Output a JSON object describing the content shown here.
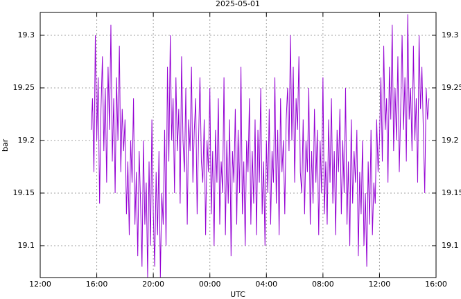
{
  "chart_data": {
    "type": "line",
    "title": "2025-05-01",
    "xlabel": "UTC",
    "ylabel": "bar",
    "xlim": [
      12,
      40
    ],
    "xticks": [
      {
        "value": 12,
        "label": "12:00"
      },
      {
        "value": 16,
        "label": "16:00"
      },
      {
        "value": 20,
        "label": "20:00"
      },
      {
        "value": 24,
        "label": "00:00"
      },
      {
        "value": 28,
        "label": "04:00"
      },
      {
        "value": 32,
        "label": "08:00"
      },
      {
        "value": 36,
        "label": "12:00"
      },
      {
        "value": 40,
        "label": "16:00"
      }
    ],
    "ylim": [
      19.0697,
      19.3217
    ],
    "yticks": [
      19.1,
      19.15,
      19.2,
      19.25,
      19.3
    ],
    "grid": true,
    "x": [
      15.6,
      15.7,
      15.8,
      15.9,
      16.0,
      16.1,
      16.2,
      16.3,
      16.4,
      16.5,
      16.6,
      16.7,
      16.8,
      16.9,
      17.0,
      17.1,
      17.2,
      17.3,
      17.4,
      17.5,
      17.6,
      17.7,
      17.8,
      17.9,
      18.0,
      18.1,
      18.2,
      18.3,
      18.4,
      18.5,
      18.6,
      18.7,
      18.8,
      18.9,
      19.0,
      19.1,
      19.2,
      19.3,
      19.4,
      19.5,
      19.6,
      19.7,
      19.8,
      19.9,
      20.0,
      20.1,
      20.2,
      20.3,
      20.4,
      20.5,
      20.6,
      20.7,
      20.8,
      20.9,
      21.0,
      21.1,
      21.2,
      21.3,
      21.4,
      21.5,
      21.6,
      21.7,
      21.8,
      21.9,
      22.0,
      22.1,
      22.2,
      22.3,
      22.4,
      22.5,
      22.6,
      22.7,
      22.8,
      22.9,
      23.0,
      23.1,
      23.2,
      23.3,
      23.4,
      23.5,
      23.6,
      23.7,
      23.8,
      23.9,
      24.0,
      24.1,
      24.2,
      24.3,
      24.4,
      24.5,
      24.6,
      24.7,
      24.8,
      24.9,
      25.0,
      25.1,
      25.2,
      25.3,
      25.4,
      25.5,
      25.6,
      25.7,
      25.8,
      25.9,
      26.0,
      26.1,
      26.2,
      26.3,
      26.4,
      26.5,
      26.6,
      26.7,
      26.8,
      26.9,
      27.0,
      27.1,
      27.2,
      27.3,
      27.4,
      27.5,
      27.6,
      27.7,
      27.8,
      27.9,
      28.0,
      28.1,
      28.2,
      28.3,
      28.4,
      28.5,
      28.6,
      28.7,
      28.8,
      28.9,
      29.0,
      29.1,
      29.2,
      29.3,
      29.4,
      29.5,
      29.6,
      29.7,
      29.8,
      29.9,
      30.0,
      30.1,
      30.2,
      30.3,
      30.4,
      30.5,
      30.6,
      30.7,
      30.8,
      30.9,
      31.0,
      31.1,
      31.2,
      31.3,
      31.4,
      31.5,
      31.6,
      31.7,
      31.8,
      31.9,
      32.0,
      32.1,
      32.2,
      32.3,
      32.4,
      32.5,
      32.6,
      32.7,
      32.8,
      32.9,
      33.0,
      33.1,
      33.2,
      33.3,
      33.4,
      33.5,
      33.6,
      33.7,
      33.8,
      33.9,
      34.0,
      34.1,
      34.2,
      34.3,
      34.4,
      34.5,
      34.6,
      34.7,
      34.8,
      34.9,
      35.0,
      35.1,
      35.2,
      35.3,
      35.4,
      35.5,
      35.6,
      35.7,
      35.8,
      35.9,
      36.0,
      36.1,
      36.2,
      36.3,
      36.4,
      36.5,
      36.6,
      36.7,
      36.8,
      36.9,
      37.0,
      37.1,
      37.2,
      37.3,
      37.4,
      37.5,
      37.6,
      37.7,
      37.8,
      37.9,
      38.0,
      38.1,
      38.2,
      38.3,
      38.4,
      38.5,
      38.6,
      38.7,
      38.8,
      38.9,
      39.0,
      39.1,
      39.2,
      39.3,
      39.4,
      39.5
    ],
    "series": [
      {
        "color": "#9400d3",
        "values": [
          19.21,
          19.24,
          19.17,
          19.3,
          19.2,
          19.26,
          19.14,
          19.23,
          19.28,
          19.19,
          19.25,
          19.16,
          19.27,
          19.21,
          19.31,
          19.18,
          19.24,
          19.15,
          19.26,
          19.2,
          19.29,
          19.17,
          19.23,
          19.19,
          19.22,
          19.13,
          19.18,
          19.11,
          19.2,
          19.16,
          19.24,
          19.12,
          19.17,
          19.09,
          19.19,
          19.14,
          19.08,
          19.2,
          19.12,
          19.16,
          19.07,
          19.18,
          19.1,
          19.22,
          19.13,
          19.08,
          19.17,
          19.11,
          19.19,
          19.07,
          19.15,
          19.12,
          19.21,
          19.1,
          19.27,
          19.18,
          19.3,
          19.2,
          19.24,
          19.15,
          19.26,
          19.19,
          19.23,
          19.14,
          19.28,
          19.2,
          19.17,
          19.25,
          19.12,
          19.22,
          19.19,
          19.27,
          19.16,
          19.21,
          19.24,
          19.13,
          19.2,
          19.26,
          19.18,
          19.16,
          19.22,
          19.11,
          19.2,
          19.17,
          19.25,
          19.13,
          19.19,
          19.1,
          19.21,
          19.16,
          19.24,
          19.12,
          19.18,
          19.15,
          19.26,
          19.11,
          19.2,
          19.14,
          19.22,
          19.09,
          19.19,
          19.16,
          19.23,
          19.12,
          19.21,
          19.15,
          19.27,
          19.13,
          19.18,
          19.1,
          19.2,
          19.17,
          19.24,
          19.12,
          19.19,
          19.14,
          19.22,
          19.11,
          19.21,
          19.16,
          19.25,
          19.13,
          19.18,
          19.1,
          19.2,
          19.15,
          19.23,
          19.12,
          19.19,
          19.16,
          19.26,
          19.14,
          19.21,
          19.11,
          19.24,
          19.17,
          19.2,
          19.13,
          19.22,
          19.25,
          19.19,
          19.3,
          19.2,
          19.27,
          19.16,
          19.24,
          19.21,
          19.28,
          19.17,
          19.15,
          19.22,
          19.13,
          19.2,
          19.17,
          19.25,
          19.12,
          19.19,
          19.14,
          19.23,
          19.16,
          19.21,
          19.11,
          19.2,
          19.15,
          19.26,
          19.13,
          19.18,
          19.12,
          19.22,
          19.16,
          19.24,
          19.14,
          19.19,
          19.11,
          19.21,
          19.17,
          19.23,
          19.13,
          19.2,
          19.15,
          19.25,
          19.12,
          19.18,
          19.1,
          19.22,
          19.14,
          19.19,
          19.16,
          19.21,
          19.09,
          19.17,
          19.13,
          19.2,
          19.1,
          19.15,
          19.08,
          19.18,
          19.12,
          19.21,
          19.11,
          19.16,
          19.14,
          19.22,
          19.17,
          19.2,
          19.26,
          19.18,
          19.29,
          19.21,
          19.24,
          19.16,
          19.27,
          19.22,
          19.31,
          19.19,
          19.25,
          19.2,
          19.28,
          19.17,
          19.23,
          19.3,
          19.21,
          19.26,
          19.18,
          19.32,
          19.22,
          19.25,
          19.19,
          19.29,
          19.2,
          19.24,
          19.16,
          19.3,
          19.23,
          19.27,
          19.21,
          19.15,
          19.25,
          19.22,
          19.24
        ]
      }
    ]
  }
}
